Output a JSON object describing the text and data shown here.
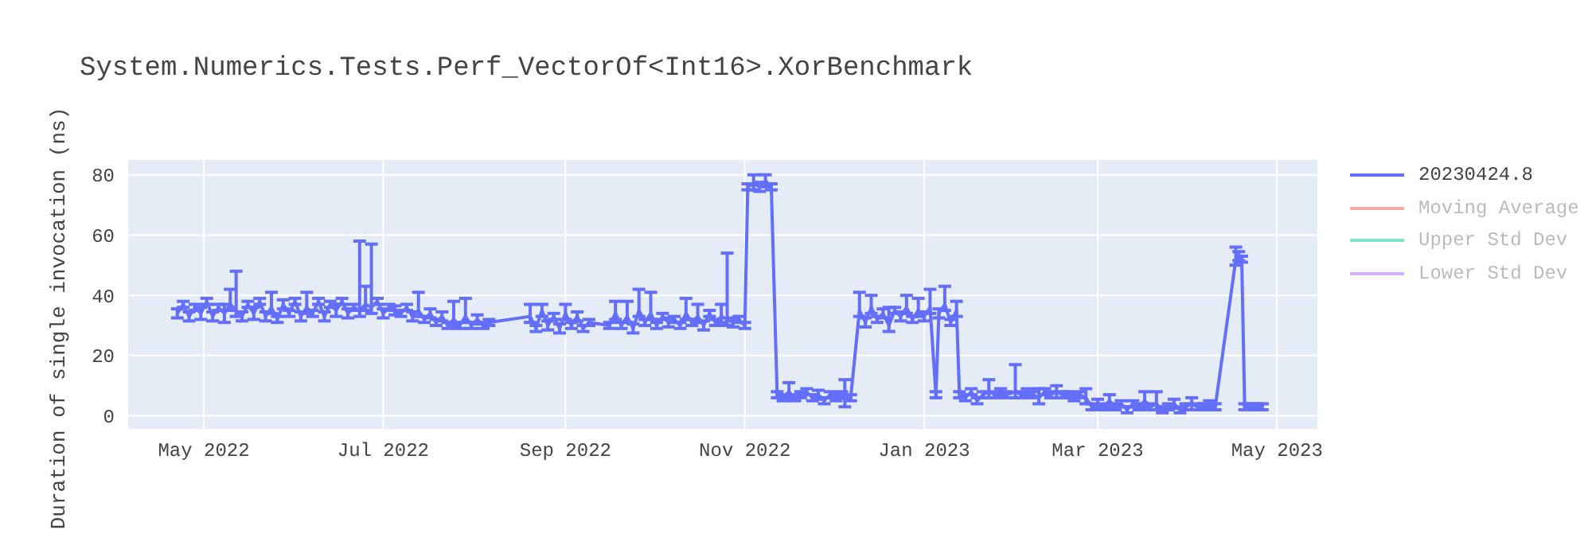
{
  "chart_data": {
    "type": "line",
    "title": "System.Numerics.Tests.Perf_VectorOf<Int16>.XorBenchmark",
    "ylabel": "Duration of single invocation (ns)",
    "legend": "top right",
    "grid": true,
    "marker": "none",
    "line_style": "solid",
    "xlim": [
      "2022-04-05",
      "2023-05-15"
    ],
    "xticks": [
      {
        "value": "2022-05-01",
        "label": "May 2022"
      },
      {
        "value": "2022-07-01",
        "label": "Jul 2022"
      },
      {
        "value": "2022-09-01",
        "label": "Sep 2022"
      },
      {
        "value": "2022-11-01",
        "label": "Nov 2022"
      },
      {
        "value": "2023-01-01",
        "label": "Jan 2023"
      },
      {
        "value": "2023-03-01",
        "label": "Mar 2023"
      },
      {
        "value": "2023-05-01",
        "label": "May 2023"
      }
    ],
    "ylim": [
      -4.6,
      85.2
    ],
    "yticks": [
      0,
      20,
      40,
      60,
      80
    ],
    "series": [
      {
        "name": "20230424.8",
        "color": "#636efa",
        "x": [
          "2022-04-22",
          "2022-04-24",
          "2022-04-26",
          "2022-04-28",
          "2022-04-30",
          "2022-05-02",
          "2022-05-04",
          "2022-05-06",
          "2022-05-08",
          "2022-05-10",
          "2022-05-12",
          "2022-05-14",
          "2022-05-16",
          "2022-05-18",
          "2022-05-20",
          "2022-05-22",
          "2022-05-24",
          "2022-05-26",
          "2022-05-28",
          "2022-05-30",
          "2022-06-01",
          "2022-06-03",
          "2022-06-05",
          "2022-06-07",
          "2022-06-09",
          "2022-06-11",
          "2022-06-13",
          "2022-06-15",
          "2022-06-17",
          "2022-06-19",
          "2022-06-21",
          "2022-06-23",
          "2022-06-25",
          "2022-06-27",
          "2022-06-29",
          "2022-07-01",
          "2022-07-03",
          "2022-07-05",
          "2022-07-07",
          "2022-07-09",
          "2022-07-11",
          "2022-07-13",
          "2022-07-15",
          "2022-07-17",
          "2022-07-19",
          "2022-07-21",
          "2022-07-23",
          "2022-07-25",
          "2022-07-27",
          "2022-07-29",
          "2022-07-31",
          "2022-08-02",
          "2022-08-04",
          "2022-08-06",
          "2022-08-20",
          "2022-08-22",
          "2022-08-24",
          "2022-08-26",
          "2022-08-28",
          "2022-08-30",
          "2022-09-01",
          "2022-09-03",
          "2022-09-05",
          "2022-09-07",
          "2022-09-09",
          "2022-09-16",
          "2022-09-18",
          "2022-09-20",
          "2022-09-22",
          "2022-09-24",
          "2022-09-26",
          "2022-09-28",
          "2022-09-30",
          "2022-10-02",
          "2022-10-04",
          "2022-10-06",
          "2022-10-08",
          "2022-10-10",
          "2022-10-12",
          "2022-10-14",
          "2022-10-16",
          "2022-10-18",
          "2022-10-20",
          "2022-10-22",
          "2022-10-24",
          "2022-10-26",
          "2022-10-28",
          "2022-10-30",
          "2022-11-01",
          "2022-11-02",
          "2022-11-04",
          "2022-11-06",
          "2022-11-08",
          "2022-11-10",
          "2022-11-12",
          "2022-11-14",
          "2022-11-16",
          "2022-11-18",
          "2022-11-20",
          "2022-11-22",
          "2022-11-24",
          "2022-11-26",
          "2022-11-28",
          "2022-11-30",
          "2022-12-02",
          "2022-12-04",
          "2022-12-05",
          "2022-12-07",
          "2022-12-10",
          "2022-12-12",
          "2022-12-14",
          "2022-12-16",
          "2022-12-18",
          "2022-12-20",
          "2022-12-22",
          "2022-12-24",
          "2022-12-26",
          "2022-12-28",
          "2022-12-30",
          "2023-01-01",
          "2023-01-03",
          "2023-01-05",
          "2023-01-06",
          "2023-01-08",
          "2023-01-10",
          "2023-01-12",
          "2023-01-13",
          "2023-01-15",
          "2023-01-17",
          "2023-01-19",
          "2023-01-21",
          "2023-01-23",
          "2023-01-25",
          "2023-01-27",
          "2023-01-29",
          "2023-02-01",
          "2023-02-03",
          "2023-02-05",
          "2023-02-07",
          "2023-02-09",
          "2023-02-11",
          "2023-02-13",
          "2023-02-15",
          "2023-02-17",
          "2023-02-19",
          "2023-02-21",
          "2023-02-23",
          "2023-02-25",
          "2023-02-27",
          "2023-03-01",
          "2023-03-03",
          "2023-03-05",
          "2023-03-07",
          "2023-03-09",
          "2023-03-11",
          "2023-03-13",
          "2023-03-15",
          "2023-03-17",
          "2023-03-19",
          "2023-03-21",
          "2023-03-23",
          "2023-03-25",
          "2023-03-27",
          "2023-03-29",
          "2023-03-31",
          "2023-04-02",
          "2023-04-04",
          "2023-04-06",
          "2023-04-08",
          "2023-04-10",
          "2023-04-17",
          "2023-04-18",
          "2023-04-19",
          "2023-04-20",
          "2023-04-22",
          "2023-04-24",
          "2023-04-26"
        ],
        "values": [
          34,
          37,
          33,
          36,
          34,
          38,
          33,
          36,
          34,
          37,
          35,
          33,
          37,
          34,
          38,
          33,
          36,
          32,
          37,
          34,
          38,
          33,
          36,
          34,
          38,
          33,
          37,
          35,
          38,
          34,
          36,
          35,
          37,
          36,
          38,
          34,
          36,
          35,
          34,
          36,
          33,
          35,
          32,
          34,
          31,
          33,
          30,
          32,
          30,
          33,
          30,
          32,
          30,
          31,
          33,
          29,
          35,
          30,
          33,
          29,
          34,
          30,
          33,
          29,
          31,
          30,
          34,
          30,
          33,
          29,
          35,
          31,
          34,
          30,
          33,
          31,
          32,
          30,
          34,
          31,
          33,
          30,
          34,
          31,
          33,
          32,
          31,
          32,
          30,
          76,
          77,
          76,
          78,
          76,
          7,
          6,
          8,
          6,
          7,
          8,
          6,
          7,
          5,
          7,
          6,
          7,
          5,
          6,
          35,
          31,
          36,
          32,
          34,
          30,
          35,
          33,
          36,
          32,
          35,
          33,
          36,
          7,
          34,
          37,
          31,
          35,
          7,
          6,
          8,
          5,
          7,
          8,
          7,
          8,
          7,
          8,
          7,
          8,
          7,
          6,
          8,
          7,
          8,
          7,
          7,
          6,
          7,
          6,
          3,
          4,
          3,
          5,
          3,
          4,
          2,
          4,
          3,
          5,
          3,
          4,
          2,
          3,
          4,
          2,
          3,
          4,
          3,
          3,
          4,
          3,
          52,
          53,
          52,
          3,
          3,
          3,
          3
        ],
        "errors": [
          1.5,
          1,
          1.5,
          1,
          2,
          1,
          1.5,
          1,
          3,
          [
            35,
            42
          ],
          [
            33,
            48
          ],
          1.5,
          1,
          2,
          1,
          1.5,
          [
            34,
            41
          ],
          1,
          1.5,
          1,
          1,
          1.5,
          [
            34,
            41
          ],
          1,
          1,
          1.5,
          1,
          2,
          1,
          1.5,
          1,
          [
            33,
            58
          ],
          [
            35,
            43
          ],
          [
            34,
            57
          ],
          1,
          1.5,
          1,
          1.5,
          1,
          1,
          1.5,
          [
            33,
            41
          ],
          1,
          1.5,
          1,
          1.5,
          1,
          [
            30,
            38
          ],
          1,
          [
            31,
            39
          ],
          1,
          1.5,
          1,
          1,
          [
            31,
            37
          ],
          1,
          [
            33,
            37
          ],
          1.5,
          1,
          1.5,
          [
            32,
            37
          ],
          1,
          1.5,
          1,
          1,
          1,
          [
            32,
            38
          ],
          1,
          [
            31,
            38
          ],
          1.5,
          [
            33,
            42
          ],
          1,
          [
            32,
            41
          ],
          1,
          1,
          1.5,
          1,
          1,
          [
            32,
            39
          ],
          1,
          [
            31,
            37
          ],
          1.5,
          1,
          1,
          [
            31,
            37
          ],
          [
            30,
            54
          ],
          1.5,
          1,
          1,
          1,
          [
            75,
            80
          ],
          1.5,
          [
            76,
            80
          ],
          1,
          1,
          1,
          [
            6,
            11
          ],
          1,
          1,
          1,
          1,
          1.5,
          1,
          1,
          1,
          1,
          [
            3,
            12
          ],
          1,
          [
            33,
            41
          ],
          1.5,
          [
            34,
            40
          ],
          1,
          1.5,
          [
            28,
            36
          ],
          1,
          1.5,
          [
            34,
            40
          ],
          1,
          [
            33,
            39
          ],
          1.5,
          [
            34,
            42
          ],
          1,
          1.5,
          [
            35,
            43
          ],
          1,
          [
            33,
            38
          ],
          1,
          1,
          1,
          1,
          1,
          [
            6,
            12
          ],
          1,
          1,
          1,
          [
            6,
            17
          ],
          1,
          1,
          1,
          [
            4,
            9
          ],
          1,
          1,
          [
            6,
            10
          ],
          1,
          1,
          1,
          1,
          [
            4,
            9
          ],
          1,
          1.5,
          1,
          [
            3,
            7
          ],
          1,
          1,
          1,
          1,
          1,
          [
            3,
            8
          ],
          1,
          [
            2,
            8
          ],
          1,
          1,
          1.5,
          1,
          1,
          [
            2,
            6
          ],
          1,
          1,
          1,
          1,
          [
            50,
            56
          ],
          1.5,
          1,
          1,
          1,
          1,
          1
        ]
      },
      {
        "name": "Moving Average",
        "color": "#ef553b"
      },
      {
        "name": "Upper Std Dev",
        "color": "#00cc96"
      },
      {
        "name": "Lower Std Dev",
        "color": "#ab63fa"
      }
    ]
  }
}
